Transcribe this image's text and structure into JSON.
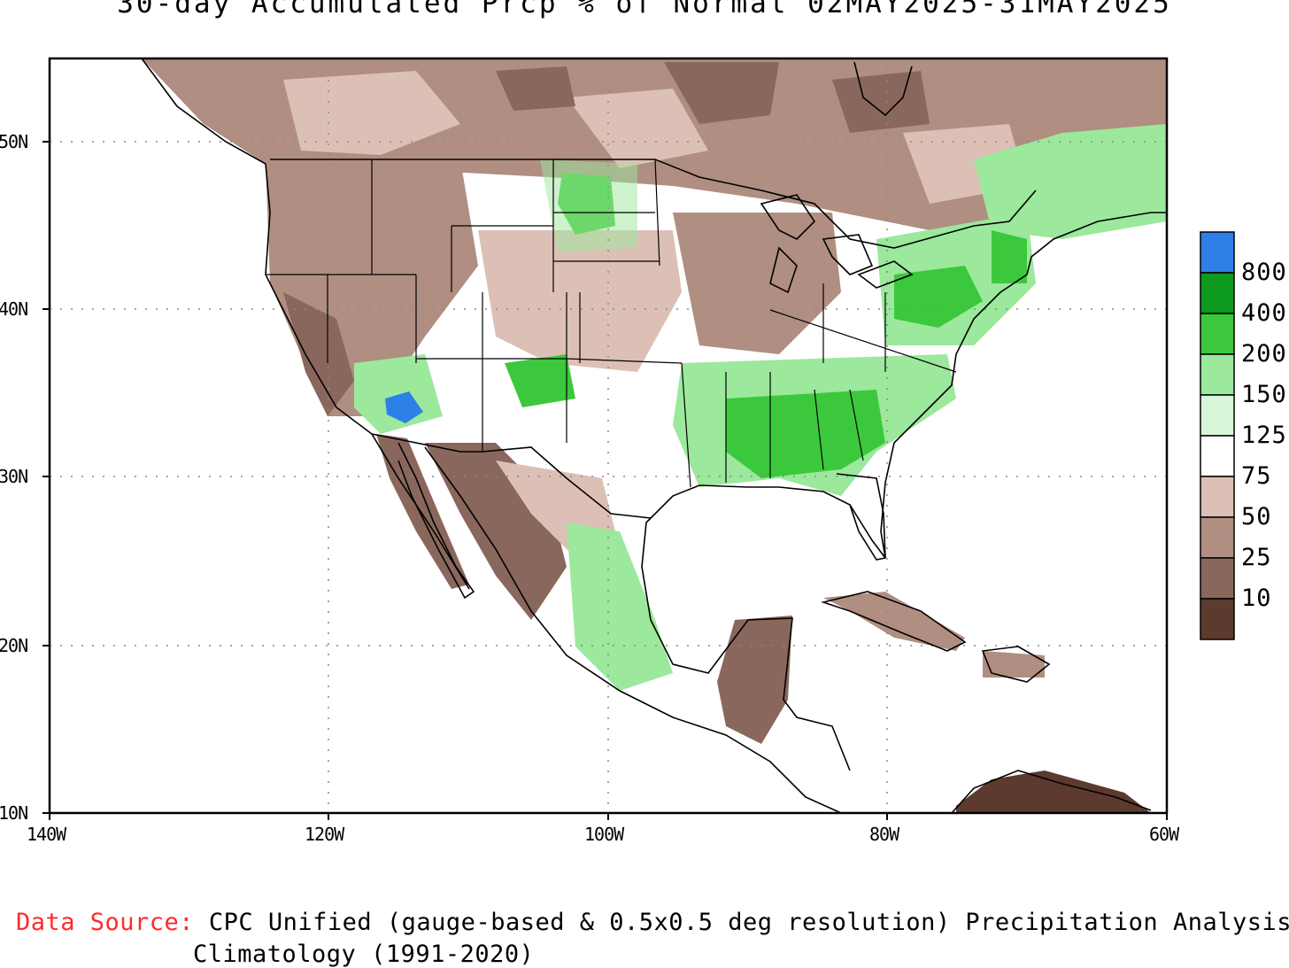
{
  "title": "30-day Accumulated Prcp % of Normal 02MAY2025-31MAY2025",
  "lat_ticks": [
    "50N",
    "40N",
    "30N",
    "20N",
    "10N"
  ],
  "lon_ticks": [
    "140W",
    "120W",
    "100W",
    "80W",
    "60W"
  ],
  "legend": {
    "labels": [
      "800",
      "400",
      "200",
      "150",
      "125",
      "75",
      "50",
      "25",
      "10"
    ],
    "colors": [
      "#2f7fe8",
      "#0d9a1d",
      "#3cc83c",
      "#9ce89c",
      "#d8f6d8",
      "#ffffff",
      "#dcc0b6",
      "#b08e82",
      "#8a675c",
      "#5d3a2e"
    ]
  },
  "data_source_label": "Data Source:",
  "data_source_text": "CPC Unified (gauge-based & 0.5x0.5 deg resolution) Precipitation Analysis",
  "climatology_text": "Climatology (1991-2020)"
}
